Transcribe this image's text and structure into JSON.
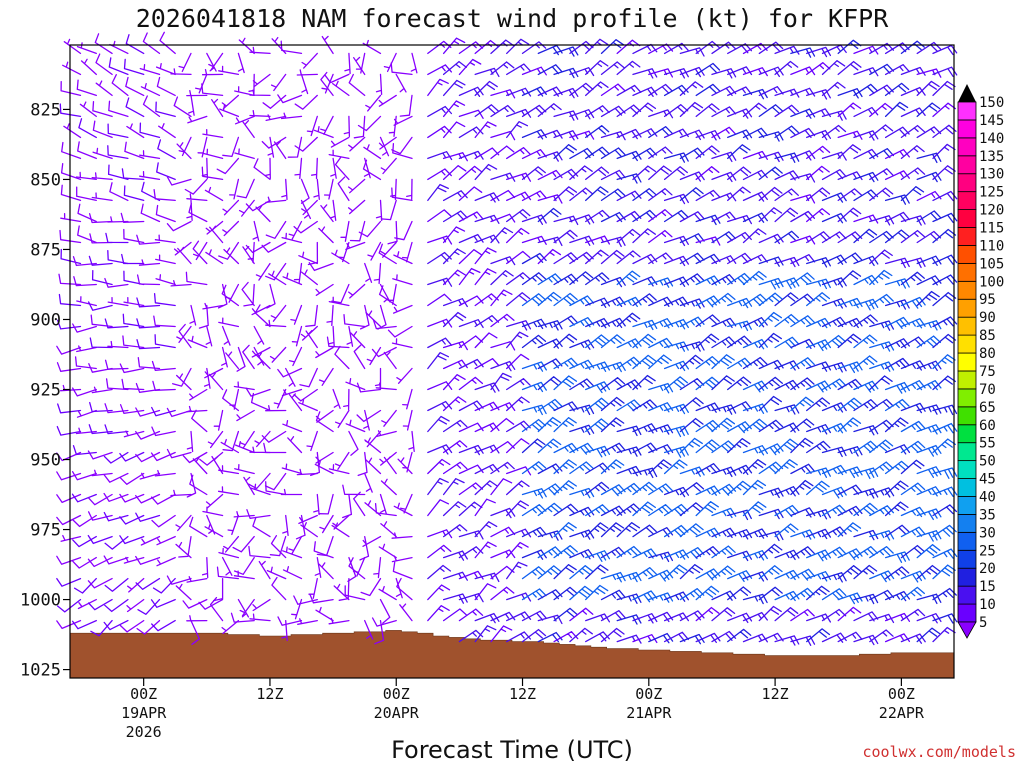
{
  "chart_data": {
    "type": "wind-barb-profile",
    "title": "2026041818 NAM forecast wind profile (kt) for KFPR",
    "xlabel": "Forecast Time (UTC)",
    "ylabel": "",
    "credit": "coolwx.com/models",
    "y_axis": {
      "quantity": "pressure (mb)",
      "ticks": [
        "825",
        "850",
        "875",
        "900",
        "925",
        "950",
        "975",
        "1000",
        "1025"
      ],
      "tick_values": [
        825,
        850,
        875,
        900,
        925,
        950,
        975,
        1000,
        1025
      ],
      "range": [
        802,
        1028
      ],
      "inverted": true
    },
    "x_axis": {
      "quantity": "forecast hour",
      "range_hours": [
        -7,
        77
      ],
      "ticks": [
        {
          "hour": 0,
          "label": "00Z",
          "date": "19APR",
          "year": "2026"
        },
        {
          "hour": 12,
          "label": "12Z",
          "date": "",
          "year": ""
        },
        {
          "hour": 24,
          "label": "00Z",
          "date": "20APR",
          "year": ""
        },
        {
          "hour": 36,
          "label": "12Z",
          "date": "",
          "year": ""
        },
        {
          "hour": 48,
          "label": "00Z",
          "date": "21APR",
          "year": ""
        },
        {
          "hour": 60,
          "label": "12Z",
          "date": "",
          "year": ""
        },
        {
          "hour": 72,
          "label": "00Z",
          "date": "22APR",
          "year": ""
        }
      ]
    },
    "colorbar": {
      "unit": "kt",
      "levels": [
        "5",
        "10",
        "15",
        "20",
        "25",
        "30",
        "35",
        "40",
        "45",
        "50",
        "55",
        "60",
        "65",
        "70",
        "75",
        "80",
        "85",
        "90",
        "95",
        "100",
        "105",
        "110",
        "115",
        "120",
        "125",
        "130",
        "135",
        "140",
        "145",
        "150"
      ],
      "colors": [
        "#8a00ff",
        "#6a00ff",
        "#4a10f0",
        "#2020e0",
        "#1040e8",
        "#1060f0",
        "#1480f0",
        "#10a0f0",
        "#00c0e0",
        "#00e0c0",
        "#00e890",
        "#00e040",
        "#40e000",
        "#80ee00",
        "#c0f000",
        "#ffff00",
        "#ffe000",
        "#ffc000",
        "#ffa000",
        "#ff8800",
        "#ff7000",
        "#ff5000",
        "#ff2020",
        "#ff0040",
        "#ff0060",
        "#ff0080",
        "#ff00a0",
        "#ff00c0",
        "#ff00e0",
        "#ff30ff"
      ]
    },
    "terrain": {
      "description": "surface pressure (mb), ground shaded below",
      "hours": [
        -7,
        0,
        6,
        12,
        18,
        24,
        30,
        36,
        42,
        48,
        54,
        60,
        66,
        72,
        77
      ],
      "pressure": [
        1012,
        1012,
        1012,
        1013,
        1012,
        1011,
        1014,
        1015,
        1017,
        1018,
        1019,
        1020,
        1020,
        1019,
        1019
      ]
    },
    "barb_grid": {
      "hours_start": -6,
      "hours_end": 76,
      "hours_step": 1.5,
      "pressures": [
        805,
        812.5,
        820,
        827.5,
        835,
        842.5,
        850,
        857.5,
        865,
        872.5,
        880,
        887.5,
        895,
        902.5,
        910,
        917.5,
        925,
        932.5,
        940,
        947.5,
        955,
        962.5,
        970,
        977.5,
        985,
        992.5,
        1000,
        1007.5,
        1015
      ],
      "wind_regimes": [
        {
          "period_hours": [
            -7,
            4
          ],
          "direction_deg": "210-330",
          "speed_kt": "5-12"
        },
        {
          "period_hours": [
            4,
            26
          ],
          "direction_deg": "variable (150-330)",
          "speed_kt": "3-10"
        },
        {
          "period_hours": [
            26,
            36
          ],
          "direction_deg": "30-80",
          "speed_kt": "12-20"
        },
        {
          "period_hours": [
            36,
            77
          ],
          "direction_deg": "45-75",
          "speed_kt": "15-30"
        }
      ]
    }
  }
}
